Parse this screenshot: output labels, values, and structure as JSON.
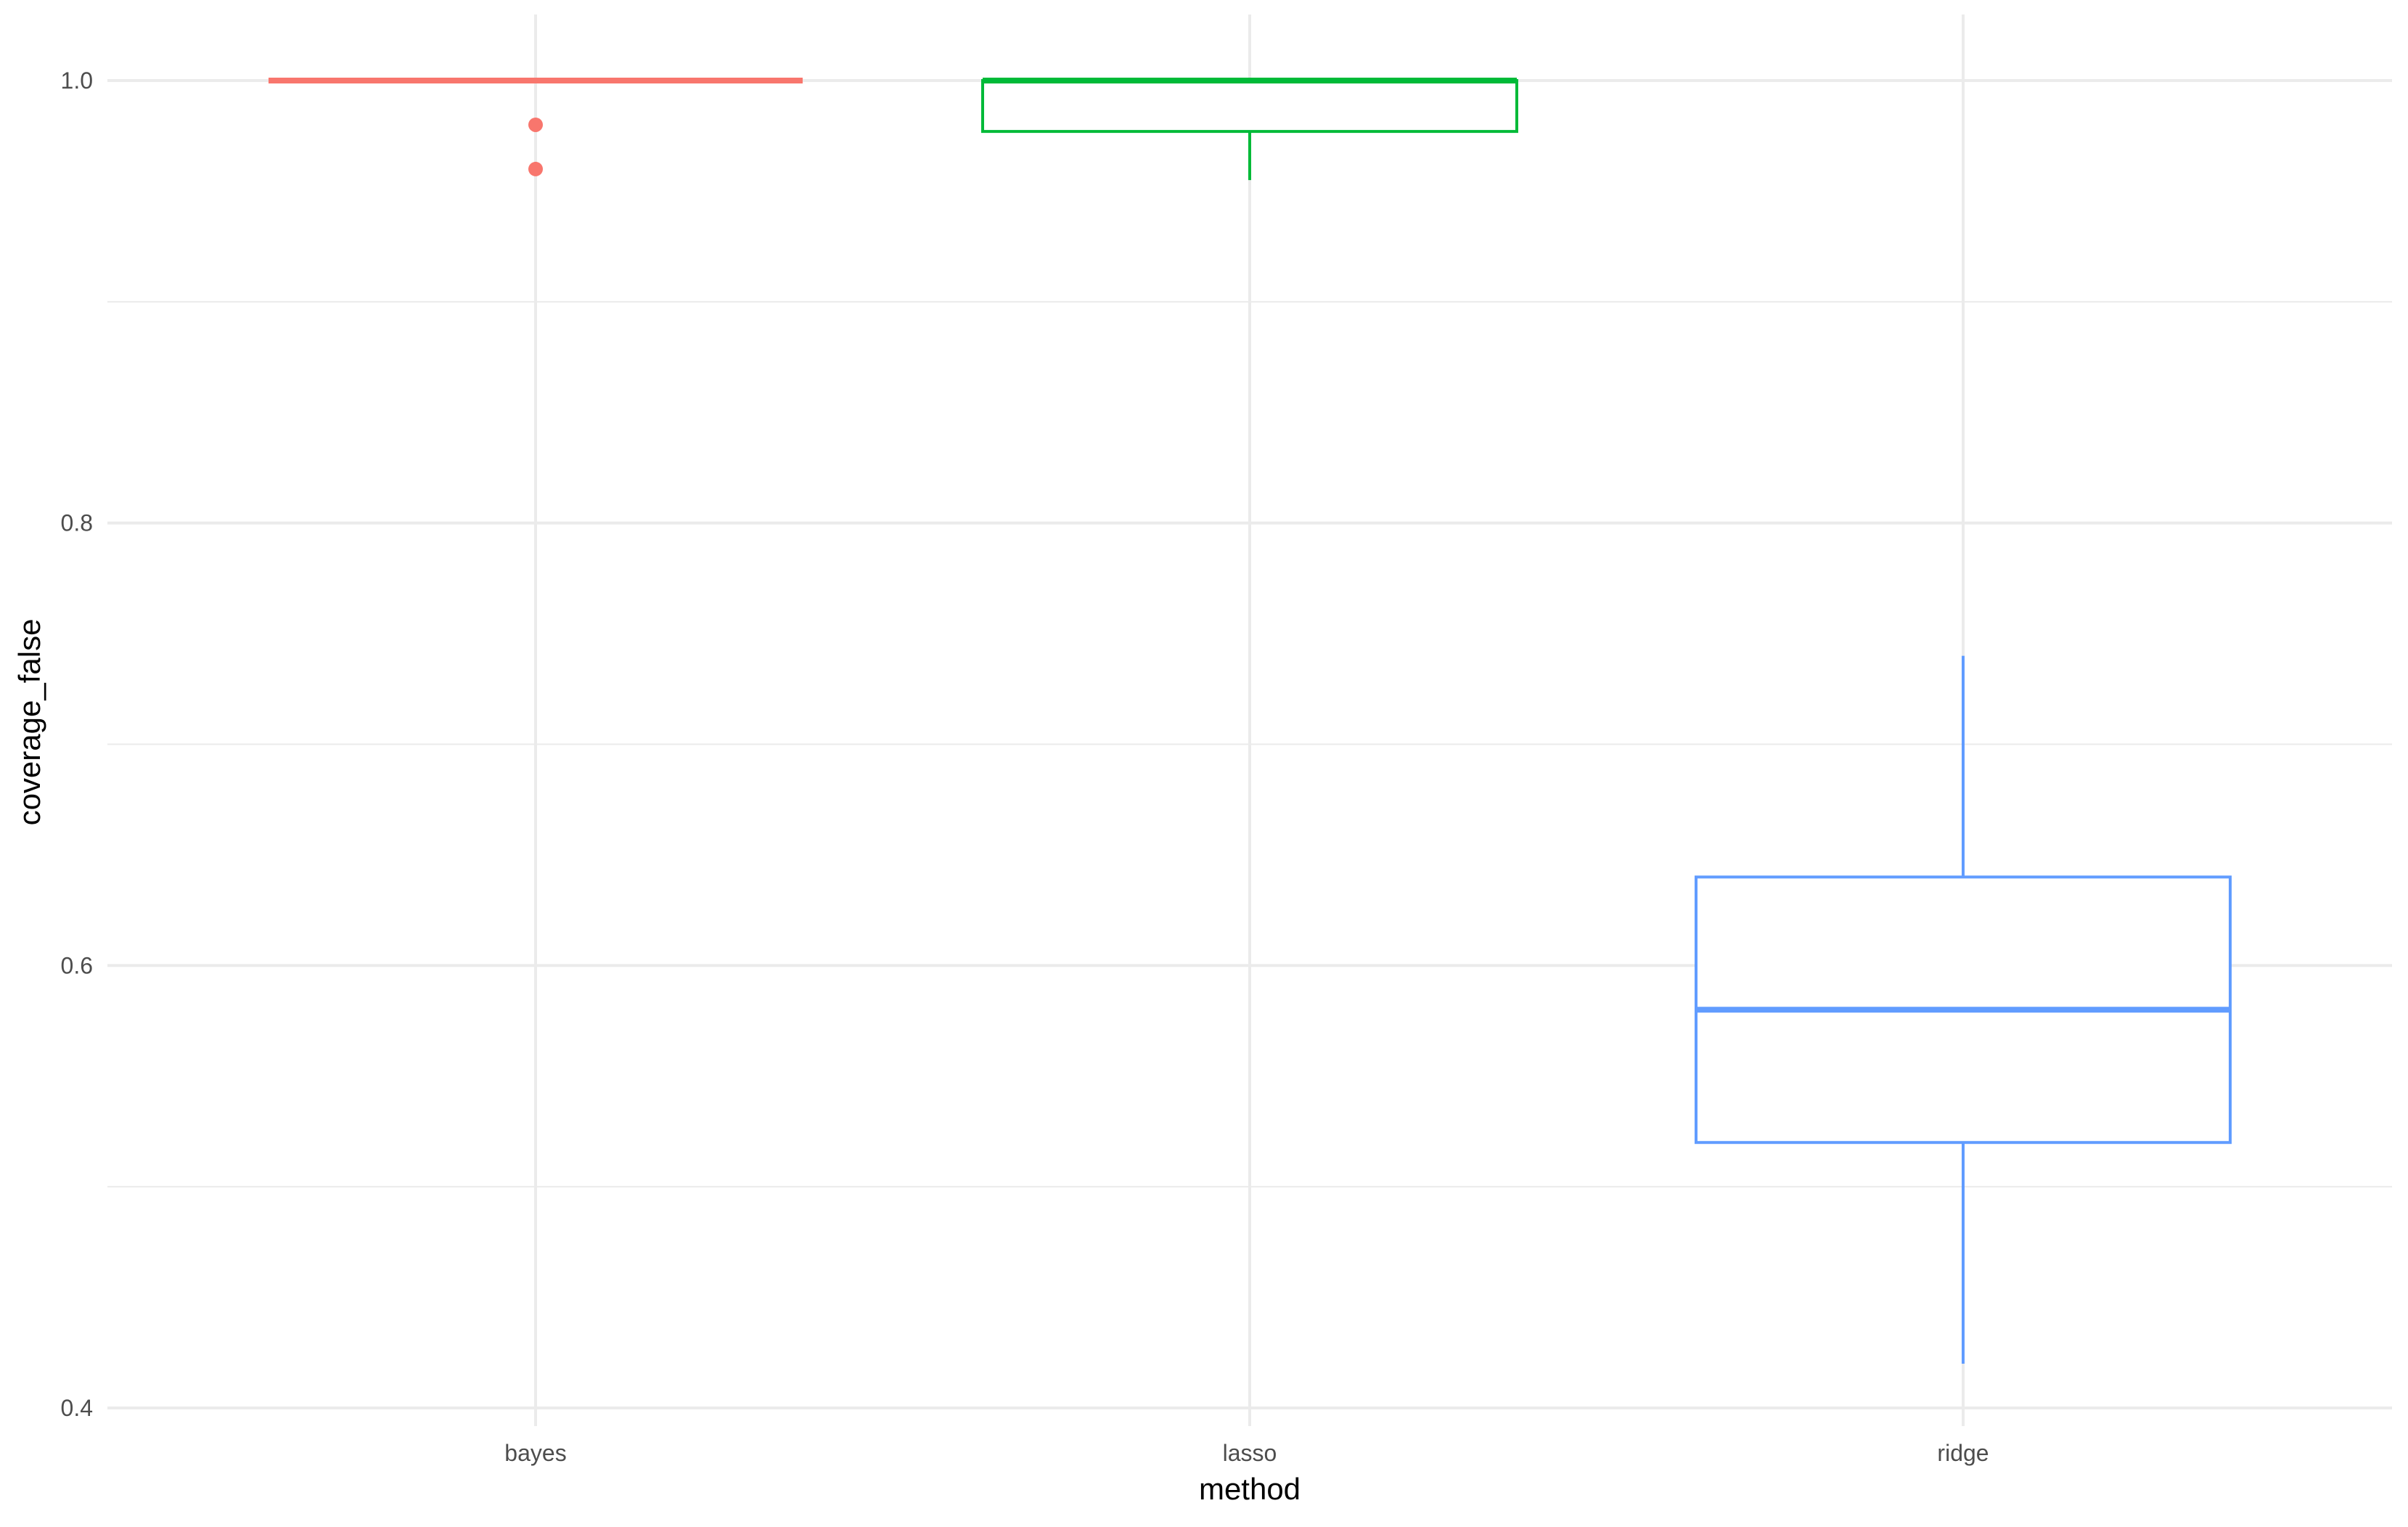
{
  "chart_data": {
    "type": "boxplot",
    "title": "",
    "xlabel": "method",
    "ylabel": "coverage_false",
    "ylim": [
      0.4,
      1.0
    ],
    "y_breaks": [
      0.4,
      0.6,
      0.8,
      1.0
    ],
    "y_tick_labels": [
      "0.4",
      "0.6",
      "0.8",
      "1.0"
    ],
    "y_minor_breaks": [
      0.5,
      0.7,
      0.9
    ],
    "categories": [
      "bayes",
      "lasso",
      "ridge"
    ],
    "grid": true,
    "legend": "none",
    "boxes": [
      {
        "category": "bayes",
        "color": "#F8766D",
        "whisker_low": 1.0,
        "q1": 1.0,
        "median": 1.0,
        "q3": 1.0,
        "whisker_high": 1.0,
        "outliers": [
          0.98,
          0.96
        ]
      },
      {
        "category": "lasso",
        "color": "#00BA38",
        "whisker_low": 0.955,
        "q1": 0.977,
        "median": 1.0,
        "q3": 1.0,
        "whisker_high": 1.0,
        "outliers": []
      },
      {
        "category": "ridge",
        "color": "#619CFF",
        "whisker_low": 0.42,
        "q1": 0.52,
        "median": 0.58,
        "q3": 0.64,
        "whisker_high": 0.74,
        "outliers": []
      }
    ]
  }
}
